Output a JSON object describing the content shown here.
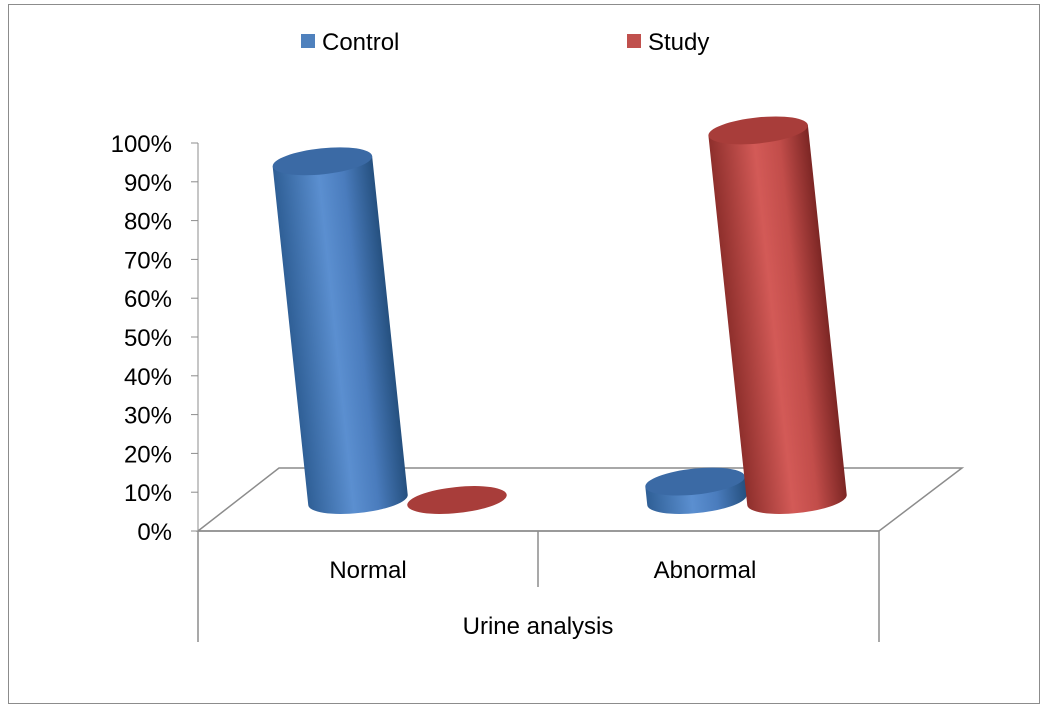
{
  "chart_data": {
    "type": "bar",
    "title": "",
    "categories": [
      "Normal",
      "Abnormal"
    ],
    "series": [
      {
        "name": "Control",
        "values": [
          95,
          12
        ],
        "color": "#4f81bd"
      },
      {
        "name": "Study",
        "values": [
          0,
          103
        ],
        "color": "#c0504d"
      }
    ],
    "xlabel": "Urine analysis",
    "ylabel": "",
    "ylim": [
      0,
      100
    ],
    "y_ticks": [
      "0%",
      "10%",
      "20%",
      "30%",
      "40%",
      "50%",
      "60%",
      "70%",
      "80%",
      "90%",
      "100%"
    ],
    "grid": false,
    "legend": "top",
    "style": "3d-cylinder"
  }
}
